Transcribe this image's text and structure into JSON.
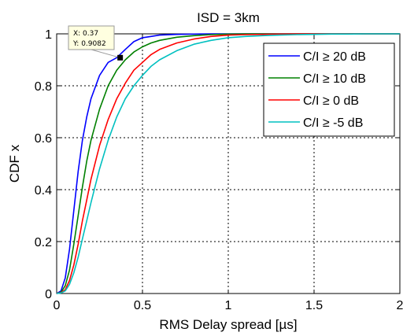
{
  "chart_data": {
    "type": "line",
    "title": "ISD = 3km",
    "xlabel": "RMS Delay spread [µs]",
    "ylabel": "CDF x",
    "xlim": [
      0,
      2
    ],
    "ylim": [
      0,
      1
    ],
    "xticks": [
      "0",
      "0.5",
      "1",
      "1.5",
      "2"
    ],
    "yticks": [
      "0",
      "0.2",
      "0.4",
      "0.6",
      "0.8",
      "1"
    ],
    "grid": true,
    "legend_position": "top-right",
    "x": [
      0,
      0.025,
      0.05,
      0.075,
      0.1,
      0.125,
      0.15,
      0.175,
      0.2,
      0.25,
      0.3,
      0.35,
      0.4,
      0.45,
      0.5,
      0.55,
      0.6,
      0.7,
      0.8,
      0.9,
      1.0,
      1.1,
      1.2,
      1.3,
      1.4,
      1.5,
      1.6,
      1.7,
      1.8,
      1.9,
      2.0
    ],
    "series": [
      {
        "name": "C/I ≥ 20 dB",
        "color": "#0000ff",
        "values": [
          0,
          0.01,
          0.06,
          0.17,
          0.32,
          0.47,
          0.59,
          0.68,
          0.75,
          0.84,
          0.89,
          0.9082,
          0.94,
          0.97,
          0.985,
          0.99,
          0.995,
          0.998,
          0.999,
          1,
          1,
          1,
          1,
          1,
          1,
          1,
          1,
          1,
          1,
          1,
          1
        ]
      },
      {
        "name": "C/I ≥ 10 dB",
        "color": "#008000",
        "values": [
          0,
          0.005,
          0.03,
          0.09,
          0.19,
          0.3,
          0.41,
          0.51,
          0.59,
          0.71,
          0.8,
          0.86,
          0.9,
          0.93,
          0.95,
          0.965,
          0.975,
          0.987,
          0.993,
          0.997,
          0.999,
          1,
          1,
          1,
          1,
          1,
          1,
          1,
          1,
          1,
          1
        ]
      },
      {
        "name": "C/I ≥ 0 dB",
        "color": "#ff0000",
        "values": [
          0,
          0.003,
          0.015,
          0.05,
          0.11,
          0.19,
          0.28,
          0.36,
          0.44,
          0.57,
          0.67,
          0.75,
          0.81,
          0.86,
          0.89,
          0.92,
          0.94,
          0.965,
          0.98,
          0.99,
          0.995,
          0.997,
          0.998,
          0.999,
          1,
          1,
          1,
          1,
          1,
          1,
          1
        ]
      },
      {
        "name": "C/I ≥ -5 dB",
        "color": "#00c0c0",
        "values": [
          0,
          0.002,
          0.01,
          0.035,
          0.08,
          0.14,
          0.21,
          0.28,
          0.35,
          0.48,
          0.59,
          0.68,
          0.75,
          0.8,
          0.84,
          0.875,
          0.9,
          0.935,
          0.96,
          0.975,
          0.985,
          0.99,
          0.993,
          0.995,
          0.997,
          0.998,
          0.999,
          0.999,
          1,
          1,
          1
        ]
      }
    ],
    "datatip": {
      "x_text": "X: 0.37",
      "y_text": "Y: 0.9082",
      "x": 0.37,
      "y": 0.9082
    }
  }
}
